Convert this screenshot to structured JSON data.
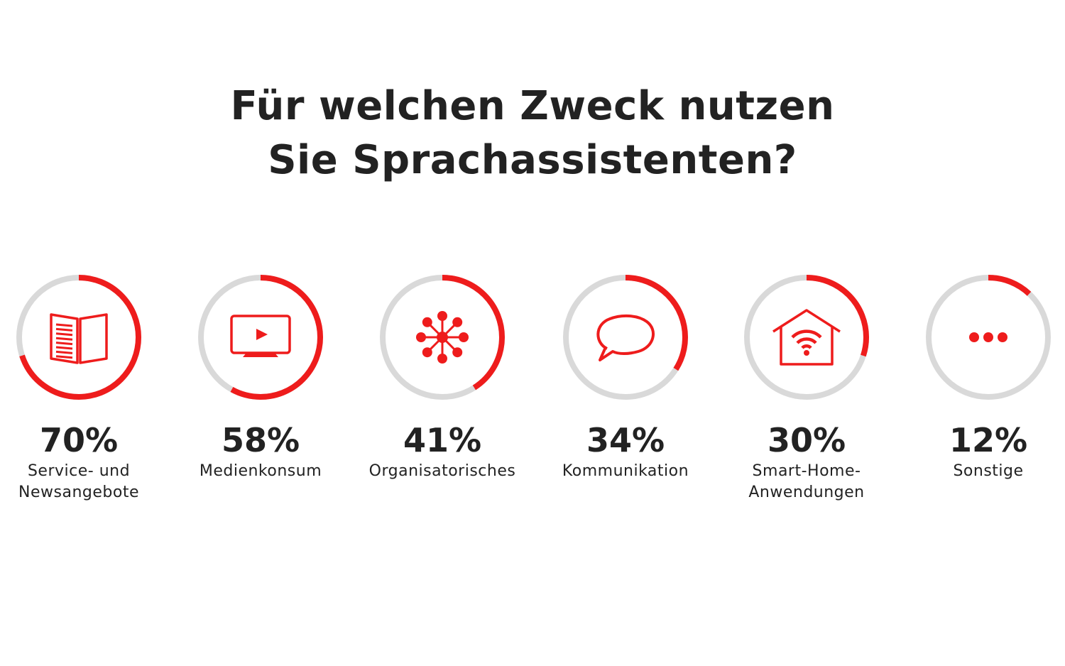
{
  "title": {
    "line1": "Für welchen Zweck nutzen",
    "line2": "Sie Sprachassistenten?"
  },
  "colors": {
    "accent": "#ee1c1c",
    "track": "#d9d9d9",
    "text": "#222222"
  },
  "chart_data": {
    "type": "radial-progress",
    "title": "Für welchen Zweck nutzen Sie Sprachassistenten?",
    "unit": "%",
    "categories": [
      "Service- und Newsangebote",
      "Medienkonsum",
      "Organisatorisches",
      "Kommunikation",
      "Smart-Home-Anwendungen",
      "Sonstige"
    ],
    "values": [
      70,
      58,
      41,
      34,
      30,
      12
    ],
    "items": [
      {
        "value": 70,
        "value_label": "70%",
        "label": "Service- und\nNewsangebote",
        "icon": "newspaper-icon"
      },
      {
        "value": 58,
        "value_label": "58%",
        "label": "Medienkonsum",
        "icon": "tv-play-icon"
      },
      {
        "value": 41,
        "value_label": "41%",
        "label": "Organisatorisches",
        "icon": "network-icon"
      },
      {
        "value": 34,
        "value_label": "34%",
        "label": "Kommunikation",
        "icon": "speech-bubble-icon"
      },
      {
        "value": 30,
        "value_label": "30%",
        "label": "Smart-Home-\nAnwendungen",
        "icon": "smart-home-icon"
      },
      {
        "value": 12,
        "value_label": "12%",
        "label": "Sonstige",
        "icon": "more-dots-icon"
      }
    ],
    "ylim": [
      0,
      100
    ]
  }
}
